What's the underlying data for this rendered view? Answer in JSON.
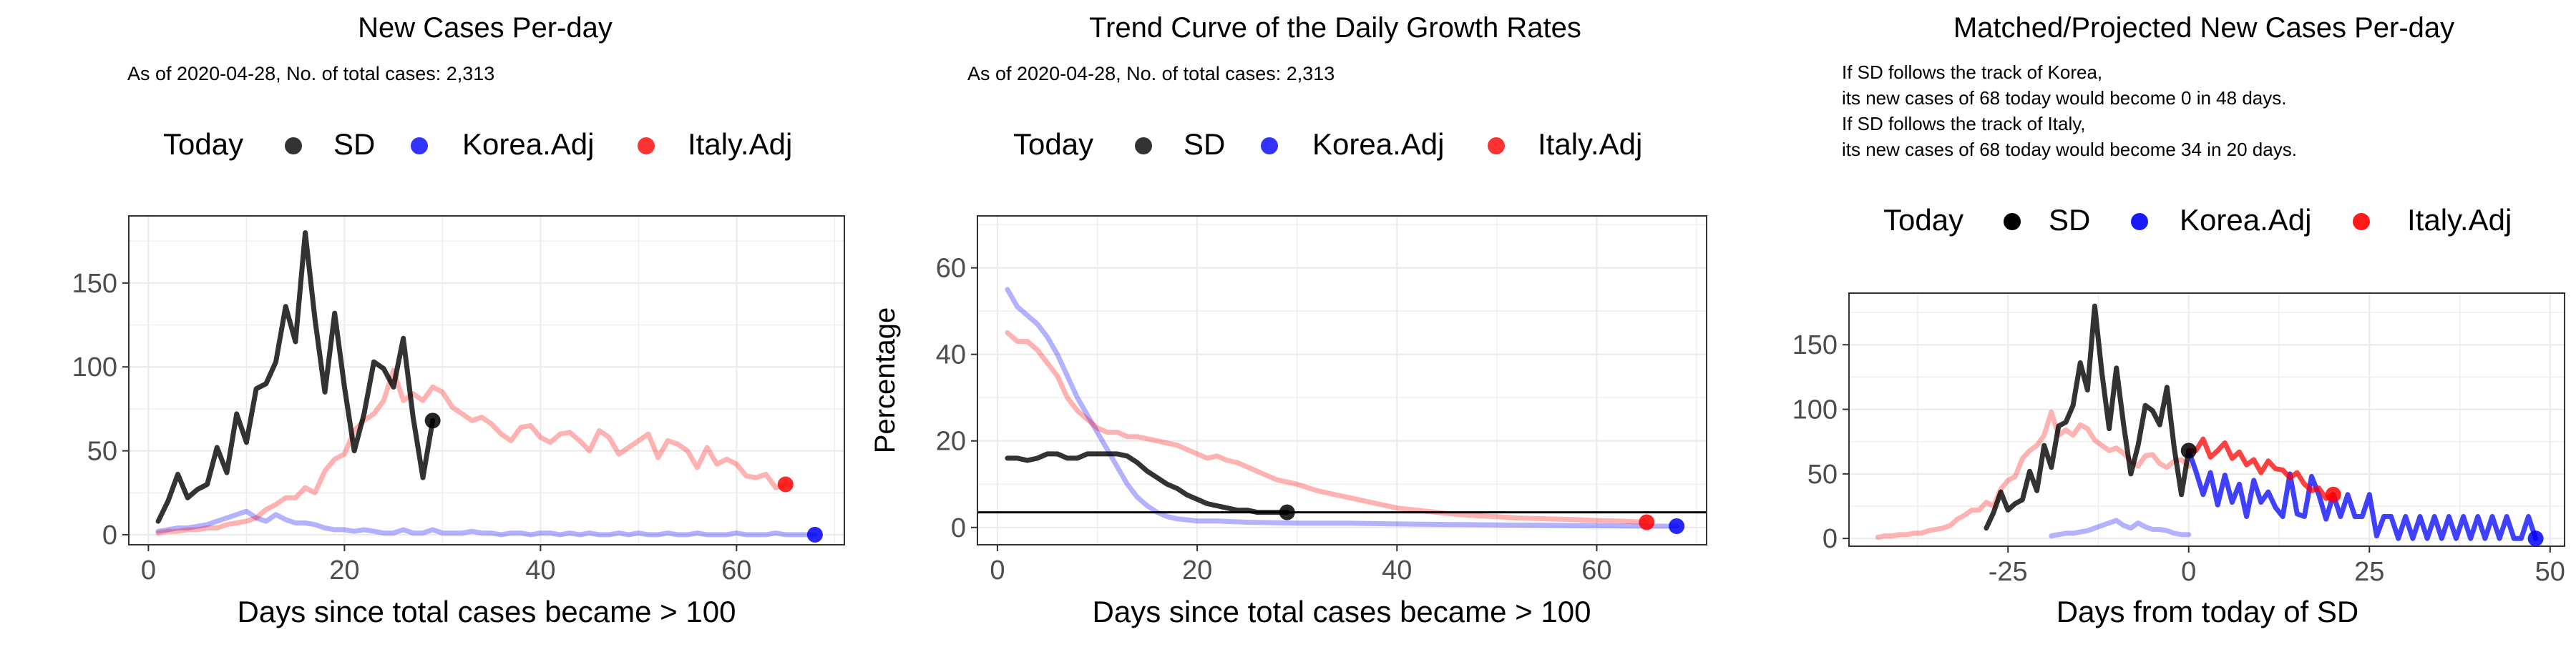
{
  "colors": {
    "sd": "#000000",
    "korea": "#0000FF",
    "italy": "#FF0000",
    "grid": "#EBEBEB",
    "axisText": "#4D4D4D"
  },
  "chart_data": [
    {
      "type": "line",
      "title": "New Cases Per-day",
      "subtitle": "As of 2020-04-28, No. of total cases: 2,313",
      "xlabel": "Days since total cases became > 100",
      "ylabel": "",
      "legend": {
        "title": "Today",
        "items": [
          "SD",
          "Korea.Adj",
          "Italy.Adj"
        ],
        "position": "top"
      },
      "xlim": [
        -2,
        71
      ],
      "ylim": [
        -6,
        190
      ],
      "xticks": [
        0,
        20,
        40,
        60
      ],
      "yticks": [
        0,
        50,
        100,
        150
      ],
      "grid": true,
      "series": [
        {
          "name": "Korea.Adj",
          "color": "#0000FF",
          "opacity": 0.3,
          "x": [
            1,
            2,
            3,
            4,
            5,
            6,
            7,
            8,
            9,
            10,
            11,
            12,
            13,
            14,
            15,
            16,
            17,
            18,
            19,
            20,
            21,
            22,
            23,
            24,
            25,
            26,
            27,
            28,
            29,
            30,
            31,
            32,
            33,
            34,
            35,
            36,
            37,
            38,
            39,
            40,
            41,
            42,
            43,
            44,
            45,
            46,
            47,
            48,
            49,
            50,
            51,
            52,
            53,
            54,
            55,
            56,
            57,
            58,
            59,
            60,
            61,
            62,
            63,
            64,
            65,
            66,
            67,
            68
          ],
          "y": [
            2,
            3,
            4,
            4,
            5,
            6,
            8,
            10,
            12,
            14,
            10,
            8,
            12,
            9,
            7,
            7,
            6,
            4,
            3,
            3,
            2,
            3,
            2,
            1,
            1,
            3,
            1,
            1,
            3,
            1,
            1,
            1,
            2,
            1,
            1,
            0,
            1,
            1,
            0,
            1,
            1,
            0,
            1,
            0,
            1,
            0,
            0,
            1,
            0,
            1,
            0,
            0,
            1,
            0,
            0,
            1,
            0,
            0,
            0,
            1,
            0,
            0,
            0,
            1,
            0,
            0,
            0,
            0
          ]
        },
        {
          "name": "Italy.Adj",
          "color": "#FF0000",
          "opacity": 0.3,
          "x": [
            1,
            2,
            3,
            4,
            5,
            6,
            7,
            8,
            9,
            10,
            11,
            12,
            13,
            14,
            15,
            16,
            17,
            18,
            19,
            20,
            21,
            22,
            23,
            24,
            25,
            26,
            27,
            28,
            29,
            30,
            31,
            32,
            33,
            34,
            35,
            36,
            37,
            38,
            39,
            40,
            41,
            42,
            43,
            44,
            45,
            46,
            47,
            48,
            49,
            50,
            51,
            52,
            53,
            54,
            55,
            56,
            57,
            58,
            59,
            60,
            61,
            62,
            63,
            64,
            65
          ],
          "y": [
            1,
            2,
            2,
            3,
            3,
            4,
            4,
            6,
            7,
            8,
            10,
            15,
            18,
            22,
            22,
            28,
            25,
            38,
            45,
            48,
            62,
            68,
            72,
            80,
            98,
            80,
            84,
            80,
            88,
            85,
            76,
            72,
            68,
            70,
            66,
            60,
            56,
            64,
            65,
            58,
            55,
            60,
            61,
            56,
            50,
            62,
            58,
            48,
            52,
            56,
            60,
            46,
            56,
            54,
            50,
            40,
            52,
            42,
            45,
            42,
            35,
            34,
            36,
            28,
            30
          ]
        },
        {
          "name": "SD",
          "color": "#000000",
          "opacity": 0.8,
          "x": [
            1,
            2,
            3,
            4,
            5,
            6,
            7,
            8,
            9,
            10,
            11,
            12,
            13,
            14,
            15,
            16,
            17,
            18,
            19,
            20,
            21,
            22,
            23,
            24,
            25,
            26,
            27,
            28,
            29
          ],
          "y": [
            8,
            20,
            36,
            22,
            27,
            30,
            52,
            37,
            72,
            55,
            87,
            90,
            103,
            136,
            115,
            180,
            128,
            85,
            132,
            88,
            50,
            72,
            103,
            99,
            88,
            117,
            70,
            34,
            68
          ]
        }
      ],
      "today_points": [
        {
          "name": "SD",
          "x": 29,
          "y": 68
        },
        {
          "name": "Korea.Adj",
          "x": 68,
          "y": 0
        },
        {
          "name": "Italy.Adj",
          "x": 65,
          "y": 30
        }
      ]
    },
    {
      "type": "line",
      "title": "Trend Curve of the Daily Growth Rates",
      "subtitle": "As of 2020-04-28, No. of total cases: 2,313",
      "xlabel": "Days since total cases became > 100",
      "ylabel": "Percentage",
      "legend": {
        "title": "Today",
        "items": [
          "SD",
          "Korea.Adj",
          "Italy.Adj"
        ],
        "position": "top"
      },
      "xlim": [
        -2,
        71
      ],
      "ylim": [
        -4,
        72
      ],
      "xticks": [
        0,
        20,
        40,
        60
      ],
      "yticks": [
        0,
        20,
        40,
        60
      ],
      "grid": true,
      "hline": 3.5,
      "series": [
        {
          "name": "Korea.Adj",
          "color": "#0000FF",
          "opacity": 0.3,
          "x": [
            1,
            2,
            3,
            4,
            5,
            6,
            7,
            8,
            9,
            10,
            11,
            12,
            13,
            14,
            15,
            16,
            17,
            18,
            20,
            22,
            25,
            30,
            35,
            40,
            45,
            50,
            55,
            60,
            65,
            68
          ],
          "y": [
            55,
            51,
            49,
            47,
            44,
            40,
            35,
            30,
            26,
            22,
            18,
            14,
            10,
            7,
            5,
            3.5,
            2.5,
            2,
            1.5,
            1.5,
            1.2,
            1,
            1,
            0.8,
            0.7,
            0.6,
            0.5,
            0.4,
            0.3,
            0.3
          ]
        },
        {
          "name": "Italy.Adj",
          "color": "#FF0000",
          "opacity": 0.3,
          "x": [
            1,
            2,
            3,
            4,
            5,
            6,
            7,
            8,
            9,
            10,
            11,
            12,
            13,
            14,
            15,
            16,
            17,
            18,
            19,
            20,
            21,
            22,
            23,
            24,
            25,
            26,
            27,
            28,
            29,
            30,
            32,
            34,
            36,
            38,
            40,
            42,
            44,
            46,
            48,
            50,
            52,
            55,
            58,
            60,
            62,
            65
          ],
          "y": [
            45,
            43,
            43,
            41,
            38,
            35,
            30,
            27,
            25,
            23,
            22,
            22,
            21,
            21,
            20.5,
            20,
            19.5,
            19,
            18,
            17,
            16,
            16.5,
            15.5,
            15,
            14,
            13,
            12,
            11,
            10.5,
            10,
            8.5,
            7.5,
            6.5,
            5.5,
            4.5,
            4,
            3.5,
            3,
            2.7,
            2.5,
            2.2,
            2,
            1.8,
            1.6,
            1.5,
            1.2
          ]
        },
        {
          "name": "SD",
          "color": "#000000",
          "opacity": 0.8,
          "x": [
            1,
            2,
            3,
            4,
            5,
            6,
            7,
            8,
            9,
            10,
            11,
            12,
            13,
            14,
            15,
            16,
            17,
            18,
            19,
            20,
            21,
            22,
            23,
            24,
            25,
            26,
            27,
            28,
            29
          ],
          "y": [
            16,
            16,
            15.5,
            16,
            17,
            17,
            16,
            16,
            17,
            17,
            17,
            17,
            16.5,
            15,
            13,
            11.5,
            10,
            9,
            7.5,
            6.5,
            5.5,
            5,
            4.5,
            4,
            4,
            3.5,
            3.5,
            3.5,
            3.5
          ]
        }
      ],
      "today_points": [
        {
          "name": "SD",
          "x": 29,
          "y": 3.5
        },
        {
          "name": "Korea.Adj",
          "x": 68,
          "y": 0.3
        },
        {
          "name": "Italy.Adj",
          "x": 65,
          "y": 1.2
        }
      ]
    },
    {
      "type": "line",
      "title": "Matched/Projected New Cases Per-day",
      "annotations": [
        "If SD follows the track of Korea,",
        "its new cases of 68 today would become 0 in 48 days.",
        "If SD follows the track of Italy,",
        "its new cases of 68 today would become 34 in 20 days."
      ],
      "xlabel": "Days from today of SD",
      "ylabel": "",
      "legend": {
        "title": "Today",
        "items": [
          "SD",
          "Korea.Adj",
          "Italy.Adj"
        ],
        "position": "top"
      },
      "xlim": [
        -47,
        52
      ],
      "ylim": [
        -6,
        190
      ],
      "xticks": [
        -25,
        0,
        25,
        50
      ],
      "yticks": [
        0,
        50,
        100,
        150
      ],
      "grid": true,
      "series": [
        {
          "name": "Korea.Adj (history)",
          "color": "#0000FF",
          "opacity": 0.3,
          "x": [
            -19,
            -18,
            -17,
            -16,
            -15,
            -14,
            -13,
            -12,
            -11,
            -10,
            -9,
            -8,
            -7,
            -6,
            -5,
            -4,
            -3,
            -2,
            -1,
            0
          ],
          "y": [
            2,
            3,
            4,
            4,
            5,
            6,
            8,
            10,
            12,
            14,
            10,
            8,
            12,
            9,
            7,
            7,
            6,
            4,
            3,
            3
          ]
        },
        {
          "name": "Italy.Adj (history)",
          "color": "#FF0000",
          "opacity": 0.3,
          "x": [
            -43,
            -42,
            -41,
            -40,
            -39,
            -38,
            -37,
            -36,
            -35,
            -34,
            -33,
            -32,
            -31,
            -30,
            -29,
            -28,
            -27,
            -26,
            -25,
            -24,
            -23,
            -22,
            -21,
            -20,
            -19,
            -18,
            -17,
            -16,
            -15,
            -14,
            -13,
            -12,
            -11,
            -10,
            -9,
            -8,
            -7,
            -6,
            -5,
            -4,
            -3,
            -2,
            -1,
            0
          ],
          "y": [
            1,
            2,
            2,
            3,
            3,
            4,
            4,
            6,
            7,
            8,
            10,
            15,
            18,
            22,
            22,
            28,
            25,
            38,
            45,
            48,
            62,
            68,
            72,
            80,
            98,
            80,
            84,
            80,
            88,
            85,
            76,
            72,
            68,
            70,
            66,
            60,
            56,
            64,
            65,
            58,
            55,
            60,
            61,
            56
          ]
        },
        {
          "name": "SD",
          "color": "#000000",
          "opacity": 0.8,
          "x": [
            -28,
            -27,
            -26,
            -25,
            -24,
            -23,
            -22,
            -21,
            -20,
            -19,
            -18,
            -17,
            -16,
            -15,
            -14,
            -13,
            -12,
            -11,
            -10,
            -9,
            -8,
            -7,
            -6,
            -5,
            -4,
            -3,
            -2,
            -1,
            0
          ],
          "y": [
            8,
            20,
            36,
            22,
            27,
            30,
            52,
            37,
            72,
            55,
            87,
            90,
            103,
            136,
            115,
            180,
            128,
            85,
            132,
            88,
            50,
            72,
            103,
            99,
            88,
            117,
            70,
            34,
            68
          ]
        },
        {
          "name": "Korea.Adj (projected)",
          "color": "#0000FF",
          "opacity": 0.75,
          "x": [
            0,
            1,
            2,
            3,
            4,
            5,
            6,
            7,
            8,
            9,
            10,
            11,
            12,
            13,
            14,
            15,
            16,
            17,
            18,
            19,
            20,
            21,
            22,
            23,
            24,
            25,
            26,
            27,
            28,
            29,
            30,
            31,
            32,
            33,
            34,
            35,
            36,
            37,
            38,
            39,
            40,
            41,
            42,
            43,
            44,
            45,
            46,
            47,
            48
          ],
          "y": [
            68,
            52,
            34,
            51,
            26,
            49,
            28,
            42,
            17,
            45,
            28,
            36,
            24,
            17,
            50,
            19,
            17,
            48,
            34,
            15,
            34,
            17,
            34,
            17,
            17,
            34,
            2,
            17,
            17,
            0,
            17,
            0,
            17,
            0,
            17,
            0,
            17,
            0,
            17,
            0,
            17,
            0,
            17,
            0,
            17,
            0,
            0,
            17,
            0
          ]
        },
        {
          "name": "Italy.Adj (projected)",
          "color": "#FF0000",
          "opacity": 0.75,
          "x": [
            0,
            1,
            2,
            3,
            4,
            5,
            6,
            7,
            8,
            9,
            10,
            11,
            12,
            13,
            14,
            15,
            16,
            17,
            18,
            19,
            20
          ],
          "y": [
            68,
            68,
            77,
            63,
            68,
            74,
            62,
            67,
            57,
            61,
            51,
            60,
            54,
            53,
            47,
            51,
            42,
            37,
            39,
            31,
            34
          ]
        }
      ],
      "today_points": [
        {
          "name": "SD",
          "x": 0,
          "y": 68
        },
        {
          "name": "Korea.Adj",
          "x": 48,
          "y": 0
        },
        {
          "name": "Italy.Adj",
          "x": 20,
          "y": 34
        }
      ]
    }
  ]
}
